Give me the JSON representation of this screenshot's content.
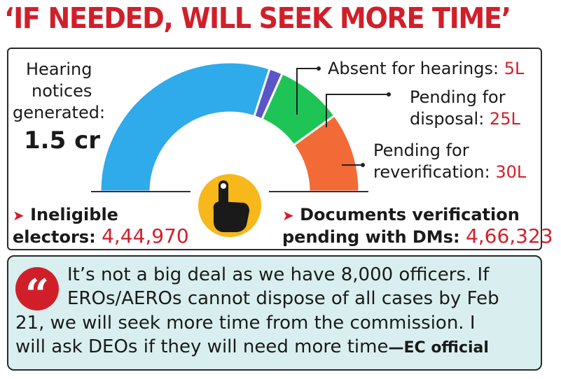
{
  "title": "‘IF NEEDED, WILL SEEK MORE TIME’",
  "chart_data": {
    "type": "pie",
    "labels": [
      "Hearing notices generated (remainder)",
      "Absent for hearings",
      "Pending for disposal",
      "Pending for reverification"
    ],
    "values": [
      90,
      5,
      25,
      30
    ],
    "units": "lakh",
    "colors": [
      "#2faaea",
      "#5a56c8",
      "#1fc456",
      "#f26a36"
    ]
  },
  "left_label": {
    "line1": "Hearing",
    "line2": "notices",
    "line3": "generated:",
    "value": "1.5 cr"
  },
  "callouts": {
    "absent": {
      "text": "Absent for hearings: ",
      "value": "5L"
    },
    "disposal": {
      "line1": "Pending for",
      "line2": "disposal: ",
      "value": "25L"
    },
    "reverif": {
      "line1": "Pending for",
      "line2": "reverification: ",
      "value": "30L"
    }
  },
  "ineligible": {
    "arrow": "➤",
    "line1": "Ineligible",
    "line2": "electors: ",
    "value": "4,44,970"
  },
  "documents": {
    "arrow": "➤",
    "line1": "Documents verification",
    "line2": "pending with DMs: ",
    "value": "4,66,323"
  },
  "quote": {
    "mark": "“",
    "line1": "It’s not a big deal as we have 8,000 officers. If",
    "line2": "EROs/AEROs cannot dispose of all cases by Feb",
    "line3": "21, we will seek more time from the commission. I",
    "line4": "will ask DEOs if they will need more time",
    "source": "—EC official"
  },
  "icons": {
    "center": "finger-ink-icon"
  }
}
